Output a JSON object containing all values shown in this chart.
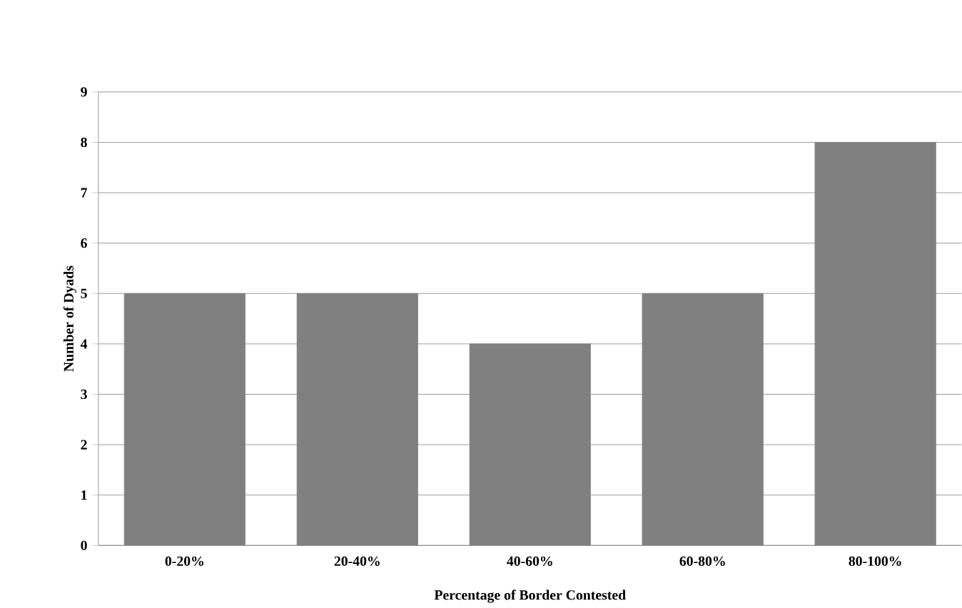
{
  "chart_data": {
    "type": "bar",
    "xlabel": "Percentage of Border Contested",
    "ylabel": "Number of Dyads",
    "categories": [
      "0-20%",
      "20-40%",
      "40-60%",
      "60-80%",
      "80-100%"
    ],
    "values": [
      5,
      5,
      4,
      5,
      8
    ],
    "color": "#808080",
    "ylim": [
      0,
      9
    ],
    "yticks": [
      0,
      1,
      2,
      3,
      4,
      5,
      6,
      7,
      8,
      9
    ],
    "grid": "y"
  }
}
